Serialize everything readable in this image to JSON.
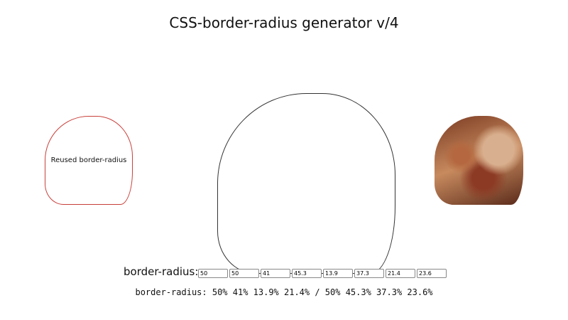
{
  "title": "CSS-border-radius generator v/4",
  "reused_label": "Reused border-radius",
  "input_label": "border-radius:",
  "inputs": [
    50,
    50,
    41,
    45.3,
    13.9,
    37.3,
    21.4,
    23.6
  ],
  "output": "border-radius: 50% 41% 13.9% 21.4% / 50% 45.3% 37.3% 23.6%"
}
